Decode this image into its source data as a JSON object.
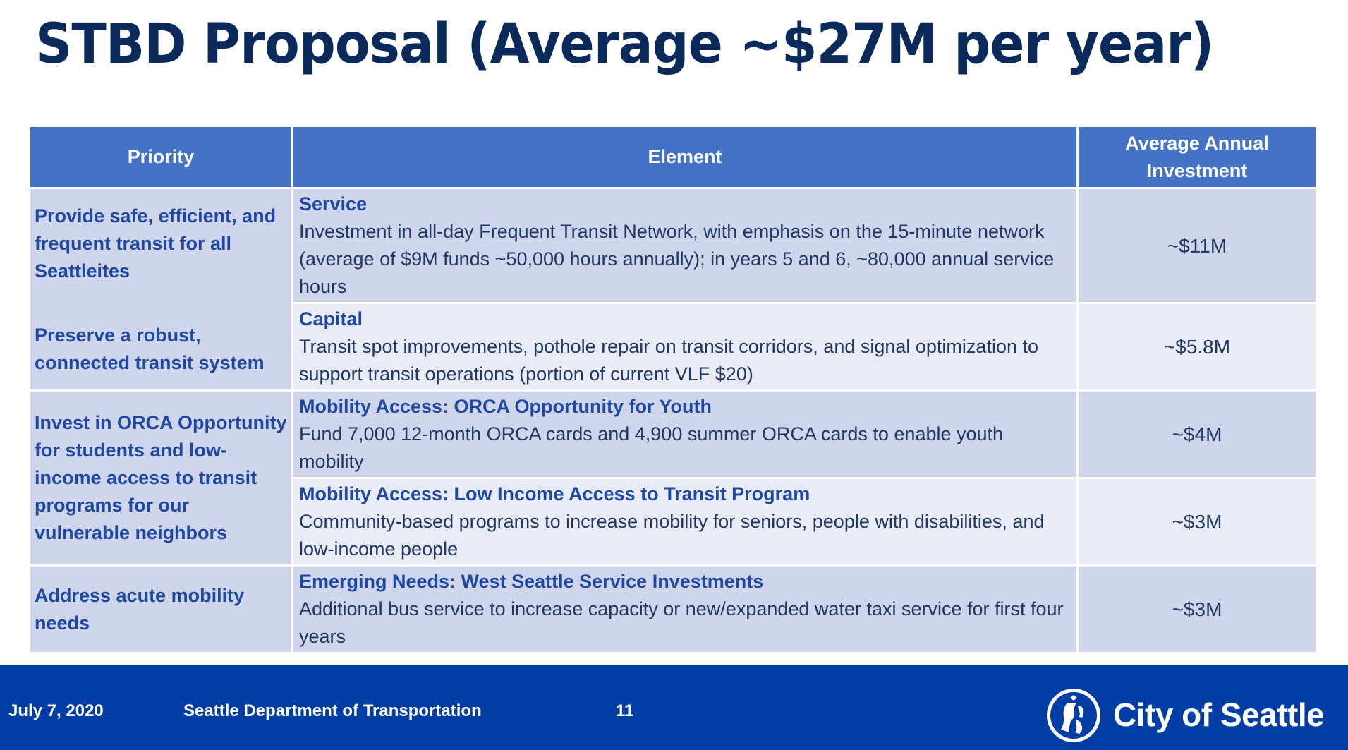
{
  "title": "STBD Proposal (Average ~$27M per year)",
  "table": {
    "headers": [
      "Priority",
      "Element",
      "Average Annual Investment"
    ],
    "priorities": [
      "Provide safe, efficient, and frequent transit for all Seattleites",
      "Preserve a robust, connected transit system",
      "Invest in ORCA Opportunity for students and low-income access to transit programs for our vulnerable neighbors",
      "Address acute mobility needs"
    ],
    "rows": [
      {
        "title": "Service",
        "description": "Investment in all-day Frequent Transit Network, with emphasis on the 15-minute network (average of $9M funds ~50,000 hours annually); in years 5 and 6, ~80,000 annual service hours",
        "investment": "~$11M"
      },
      {
        "title": "Capital",
        "description": "Transit spot improvements, pothole repair on transit corridors, and signal optimization to support transit operations (portion of current VLF $20)",
        "investment": "~$5.8M"
      },
      {
        "title": "Mobility Access: ORCA Opportunity for Youth",
        "description": "Fund 7,000 12-month ORCA cards and 4,900 summer ORCA cards to enable youth mobility",
        "investment": "~$4M"
      },
      {
        "title": "Mobility Access: Low Income Access to Transit Program",
        "description": "Community-based programs to increase mobility for seniors, people with disabilities, and low-income people",
        "investment": "~$3M"
      },
      {
        "title": "Emerging Needs: West Seattle Service Investments",
        "description": "Additional bus service to increase capacity or new/expanded water taxi service for first four years",
        "investment": "~$3M"
      }
    ]
  },
  "footer": {
    "date": "July 7, 2020",
    "department": "Seattle Department of Transportation",
    "page_number": "11",
    "logo_text": "City of Seattle"
  },
  "colors": {
    "title": "#0b2a5c",
    "header_bg": "#4472c4",
    "row_dark": "#cfd5ea",
    "row_light": "#e9ebf5",
    "priority_text": "#1f48a0",
    "footer_bg": "#003da5"
  },
  "icons": {
    "logo": "city-seal-icon"
  }
}
